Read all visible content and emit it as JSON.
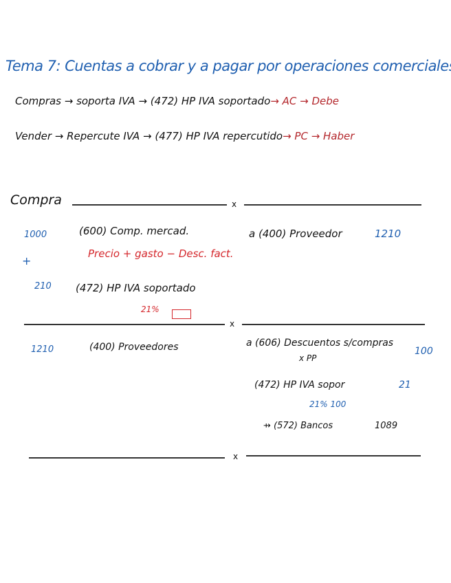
{
  "title": "Tema 7: Cuentas a cobrar y a pagar por operaciones comerciales",
  "rules": [
    {
      "main": "Compras → soporta IVA → (472) HP IVA soportado",
      "tail": "→ AC → Debe"
    },
    {
      "main": "Vender → Repercute IVA → (477) HP IVA repercutido",
      "tail": "→ PC → Haber"
    }
  ],
  "section_label": "Compra",
  "separator_mark": "x",
  "entry1": {
    "debit": [
      {
        "amount": "1000",
        "account": "(600) Comp. mercad."
      },
      {
        "amount": "210",
        "account": "(472) HP IVA soportado"
      }
    ],
    "plus": "+",
    "note": "Precio + gasto − Desc. fact.",
    "vat_note": "21%",
    "credit": {
      "account": "a (400) Proveedor",
      "amount": "1210"
    }
  },
  "entry2": {
    "debit": {
      "amount": "1210",
      "account": "(400) Proveedores"
    },
    "credit": [
      {
        "account": "a (606) Descuentos s/compras",
        "account_line2": "x PP",
        "amount": "100"
      },
      {
        "account": "(472) HP IVA sopor",
        "amount": "21",
        "note": "21% 100"
      },
      {
        "account": "⇸ (572) Bancos",
        "amount": "1089"
      }
    ]
  },
  "colors": {
    "blue": "#1f5fb0",
    "red": "#d4252a",
    "black": "#111111"
  }
}
